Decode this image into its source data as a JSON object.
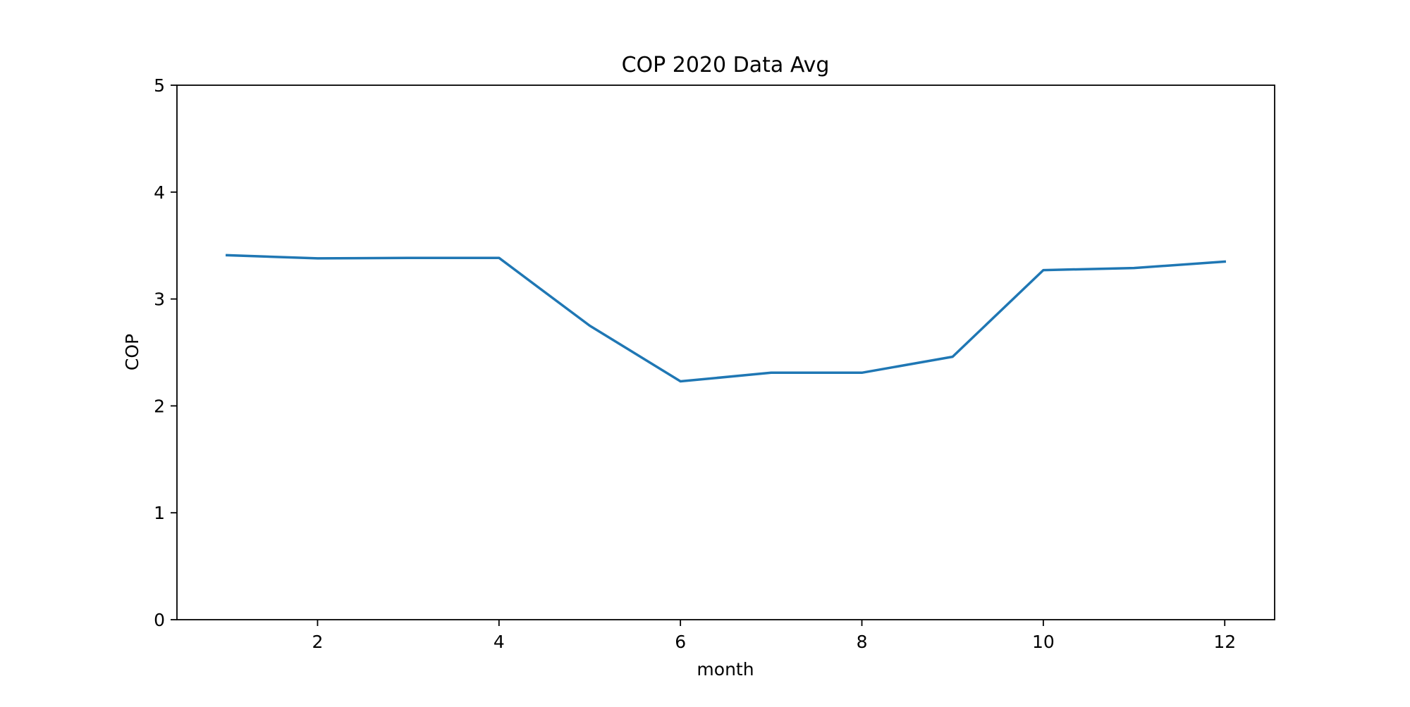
{
  "chart_data": {
    "type": "line",
    "title": "COP 2020 Data Avg",
    "xlabel": "month",
    "ylabel": "COP",
    "xlim": [
      0.45,
      12.55
    ],
    "ylim": [
      0,
      5
    ],
    "xticks": [
      2,
      4,
      6,
      8,
      10,
      12
    ],
    "yticks": [
      0,
      1,
      2,
      3,
      4,
      5
    ],
    "grid": false,
    "legend": "none",
    "series": [
      {
        "color": "#1f77b4",
        "x": [
          1,
          2,
          3,
          4,
          5,
          6,
          7,
          8,
          9,
          10,
          11,
          12
        ],
        "y": [
          3.41,
          3.38,
          3.385,
          3.385,
          2.75,
          2.23,
          2.31,
          2.31,
          2.46,
          3.27,
          3.29,
          3.35
        ]
      }
    ]
  }
}
